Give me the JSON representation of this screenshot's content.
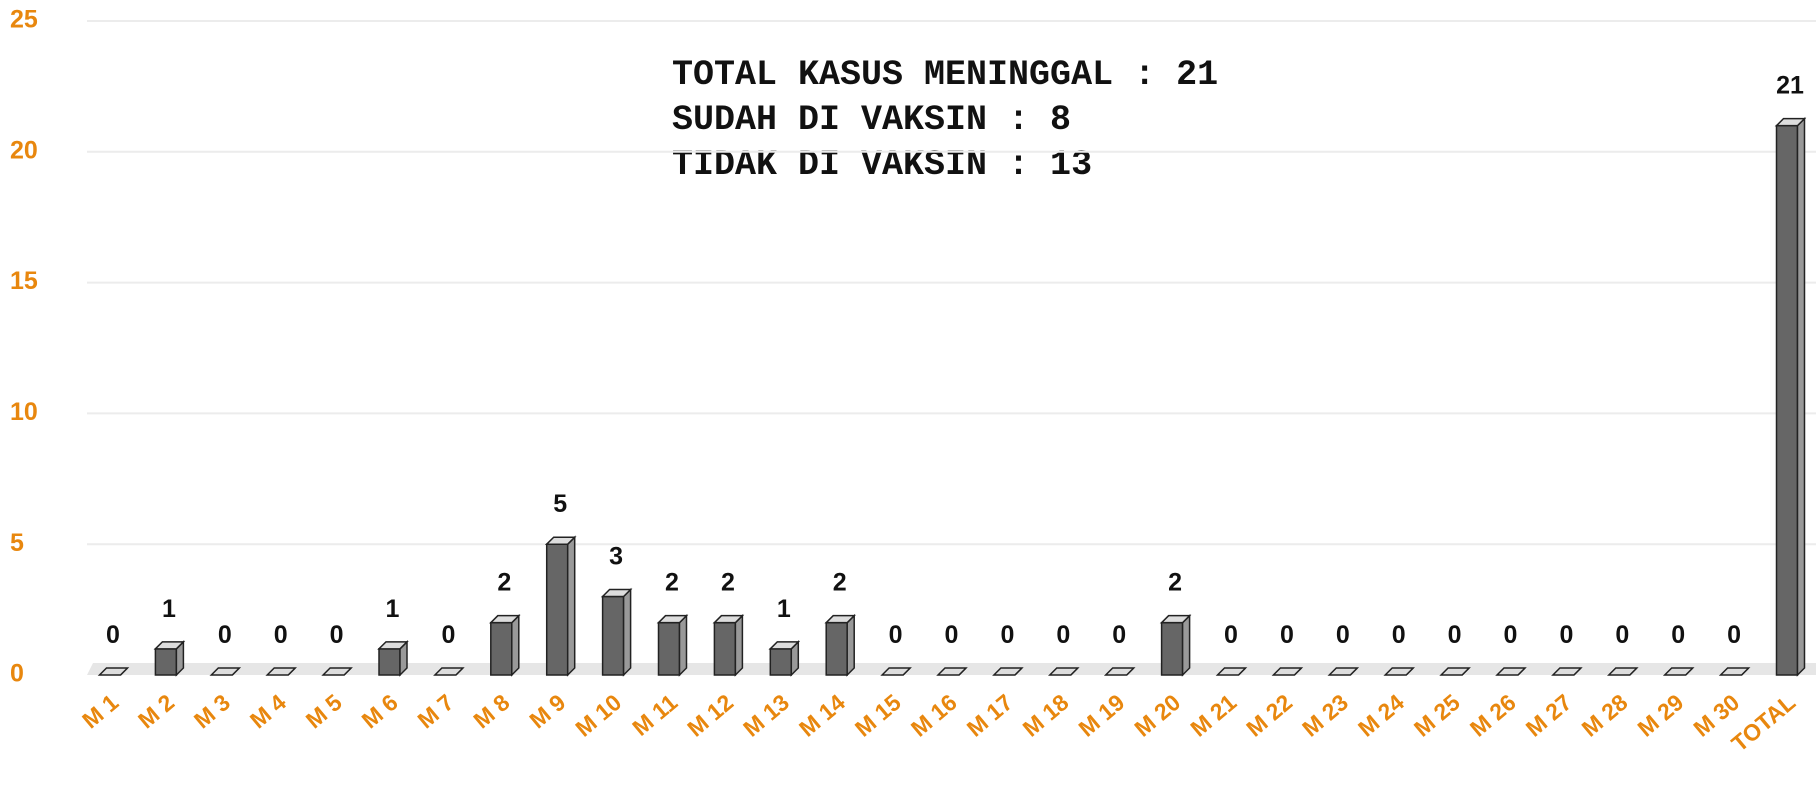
{
  "chart_data": {
    "type": "bar3d",
    "annotations": [
      "TOTAL KASUS MENINGGAL : 21",
      "SUDAH DI VAKSIN : 8",
      "TIDAK DI VAKSIN : 13"
    ],
    "categories": [
      "M 1",
      "M 2",
      "M 3",
      "M 4",
      "M 5",
      "M 6",
      "M 7",
      "M 8",
      "M 9",
      "M 10",
      "M 11",
      "M 12",
      "M 13",
      "M 14",
      "M 15",
      "M 16",
      "M 17",
      "M 18",
      "M 19",
      "M 20",
      "M 21",
      "M 22",
      "M 23",
      "M 24",
      "M 25",
      "M 26",
      "M 27",
      "M 28",
      "M 29",
      "M 30",
      "TOTAL"
    ],
    "values": [
      0,
      1,
      0,
      0,
      0,
      1,
      0,
      2,
      5,
      3,
      2,
      2,
      1,
      2,
      0,
      0,
      0,
      0,
      0,
      2,
      0,
      0,
      0,
      0,
      0,
      0,
      0,
      0,
      0,
      0,
      21
    ],
    "color": "#666666",
    "ylim": [
      0,
      25
    ],
    "yticks": [
      0,
      5,
      10,
      15,
      20,
      25
    ],
    "grid": true,
    "tick_color": "#e8870e"
  }
}
